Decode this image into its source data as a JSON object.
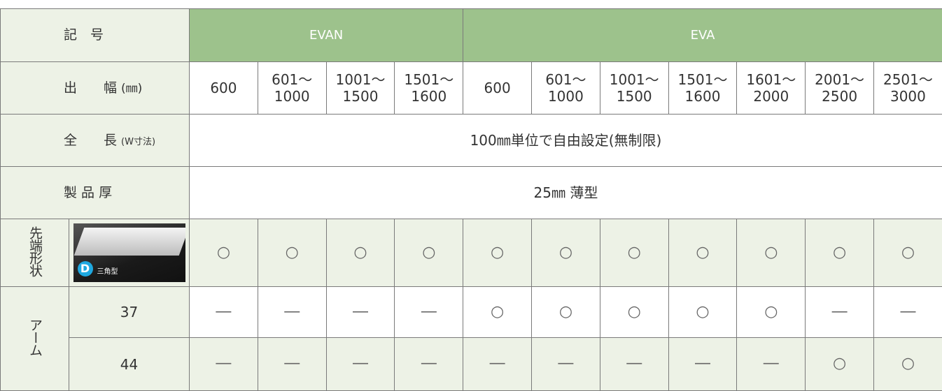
{
  "table": {
    "header": {
      "label": "記　号",
      "groups": [
        {
          "name": "EVAN",
          "span": 4
        },
        {
          "name": "EVA",
          "span": 7
        }
      ]
    },
    "width_row": {
      "label": "出　　幅",
      "unit": "(㎜)",
      "values": [
        [
          "600"
        ],
        [
          "601～",
          "1000"
        ],
        [
          "1001～",
          "1500"
        ],
        [
          "1501～",
          "1600"
        ],
        [
          "600"
        ],
        [
          "601～",
          "1000"
        ],
        [
          "1001～",
          "1500"
        ],
        [
          "1501～",
          "1600"
        ],
        [
          "1601～",
          "2000"
        ],
        [
          "2001～",
          "2500"
        ],
        [
          "2501～",
          "3000"
        ]
      ]
    },
    "length_row": {
      "label": "全　　長",
      "unit": "(W寸法)",
      "value": "100㎜単位で自由設定(無制限)"
    },
    "thickness_row": {
      "label": "製 品 厚",
      "value": "25㎜ 薄型"
    },
    "tip_row": {
      "label": "先端形状",
      "badge": "D",
      "caption": "三角型",
      "values": [
        "○",
        "○",
        "○",
        "○",
        "○",
        "○",
        "○",
        "○",
        "○",
        "○",
        "○"
      ]
    },
    "arm": {
      "label": "アーム",
      "rows": [
        {
          "label": "37",
          "values": [
            "―",
            "―",
            "―",
            "―",
            "○",
            "○",
            "○",
            "○",
            "○",
            "―",
            "―"
          ]
        },
        {
          "label": "44",
          "values": [
            "―",
            "―",
            "―",
            "―",
            "―",
            "―",
            "―",
            "―",
            "―",
            "○",
            "○"
          ]
        }
      ]
    }
  }
}
